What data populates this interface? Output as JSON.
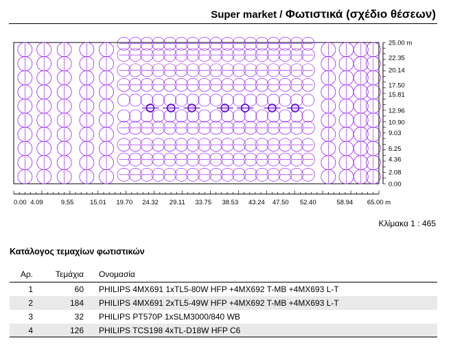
{
  "header": {
    "project": "Super market /",
    "title": "Φωτιστικά (σχέδιο θέσεων)"
  },
  "plan": {
    "x_ticks": [
      "0.00",
      "4.09",
      "9.55",
      "15.01",
      "19.70",
      "24.32",
      "29.11",
      "33.75",
      "38.53",
      "43.24",
      "47.50",
      "52.40",
      "58.94",
      "65.00 m"
    ],
    "y_ticks": [
      "25.00 m",
      "22.35",
      "20.14",
      "17.50",
      "15.81",
      "12.96",
      "10.90",
      "9.03",
      "6.25",
      "4.36",
      "2.08",
      "0.00"
    ],
    "luminaire_color": "#8b00ff",
    "grid_color": "#000000"
  },
  "scale_label": "Κλίμακα 1 : 465",
  "catalog": {
    "title": "Κατάλογος τεμαχίων φωτιστικών",
    "headers": [
      "Αρ.",
      "Τεμάχια",
      "Ονομασία"
    ],
    "rows": [
      {
        "no": "1",
        "qty": "60",
        "name": "PHILIPS 4MX691 1xTL5-80W HFP +4MX692 T-MB +4MX693 L-T"
      },
      {
        "no": "2",
        "qty": "184",
        "name": "PHILIPS 4MX691 2xTL5-49W HFP +4MX692 T-MB +4MX693 L-T"
      },
      {
        "no": "3",
        "qty": "32",
        "name": "PHILIPS PT570P 1xSLM3000/840 WB"
      },
      {
        "no": "4",
        "qty": "126",
        "name": "PHILIPS TCS198 4xTL-D18W HFP C6"
      }
    ]
  }
}
